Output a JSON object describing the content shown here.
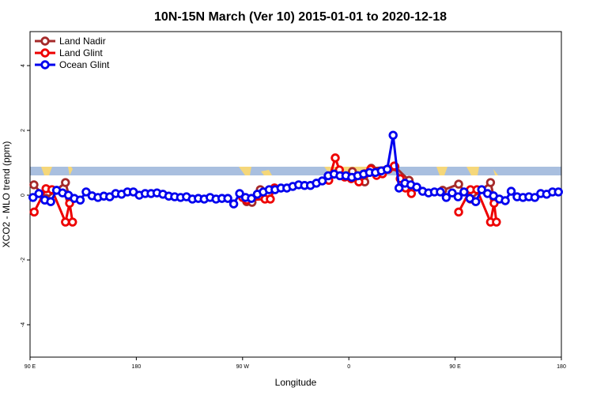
{
  "chart_data": {
    "type": "line",
    "title": "10N-15N March (Ver 10)   2015-01-01 to 2020-12-18",
    "x_label": "Longitude",
    "y_label": "XCO2 - MLO trend (ppm)",
    "xlim": [
      90,
      540
    ],
    "ylim": [
      -5,
      5.05
    ],
    "xticks": [
      {
        "value": 90,
        "label": "90 E"
      },
      {
        "value": 180,
        "label": "180"
      },
      {
        "value": 270,
        "label": "90 W"
      },
      {
        "value": 360,
        "label": "0"
      },
      {
        "value": 450,
        "label": "90 E"
      },
      {
        "value": 540,
        "label": "180"
      }
    ],
    "yticks": [
      -4,
      -2,
      0,
      2,
      4
    ],
    "legend": "top-left",
    "series": [
      {
        "name": "Land Nadir",
        "color": "#a52a2a",
        "x": [
          93.3,
          103.4,
          120,
          123.5,
          null,
          273.5,
          278,
          285,
          297,
          null,
          363,
          373.5,
          379,
          399,
          411,
          null,
          439.5,
          453,
          463,
          480,
          483
        ],
        "values": [
          0.32,
          -0.1,
          0.39,
          -0.1,
          null,
          -0.2,
          -0.22,
          0.17,
          0.22,
          null,
          0.73,
          0.41,
          0.83,
          0.88,
          0.46,
          null,
          0.15,
          0.34,
          -0.12,
          0.39,
          -0.1
        ]
      },
      {
        "name": "Land Glint",
        "color": "#ee0000",
        "x": [
          93.5,
          103.5,
          108.5,
          120,
          123.5,
          126,
          null,
          270,
          273.5,
          289,
          293.5,
          297,
          null,
          343,
          348.5,
          352,
          356.5,
          362,
          368.5,
          373.5,
          378.5,
          383.5,
          388.5,
          393.5,
          398.5,
          403.5,
          408,
          413,
          null,
          453,
          463,
          468.5,
          480,
          483,
          485
        ],
        "values": [
          -0.52,
          0.2,
          0.17,
          -0.83,
          -0.25,
          -0.83,
          null,
          -0.07,
          -0.15,
          -0.12,
          -0.12,
          0.22,
          null,
          0.46,
          1.15,
          0.78,
          0.56,
          0.51,
          0.41,
          0.66,
          0.8,
          0.61,
          0.66,
          0.8,
          0.9,
          0.51,
          0.22,
          0.05,
          null,
          -0.52,
          0.17,
          0.17,
          -0.83,
          -0.25,
          -0.83
        ]
      },
      {
        "name": "Ocean Glint",
        "color": "#0000ee",
        "x": [
          92.5,
          97.5,
          102.5,
          107.5,
          112.5,
          117.5,
          122.5,
          127.5,
          132.5,
          137.5,
          142.5,
          147.5,
          152.5,
          157.5,
          162.5,
          167.5,
          172.5,
          177.5,
          182.5,
          187.5,
          192.5,
          197.5,
          202.5,
          207.5,
          212.5,
          217.5,
          222.5,
          227.5,
          232.5,
          237.5,
          242.5,
          247.5,
          252.5,
          257.5,
          262.5,
          267.5,
          272.5,
          277.5,
          282.5,
          287.5,
          292.5,
          297.5,
          302.5,
          307.5,
          312.5,
          317.5,
          322.5,
          327.5,
          332.5,
          337.5,
          342.5,
          347.5,
          352.5,
          357.5,
          362.5,
          367.5,
          372.5,
          377.5,
          382.5,
          387.5,
          392.5,
          397.5,
          402.5,
          407.5,
          412.5,
          417.5,
          422.5,
          427.5,
          432.5,
          437.5,
          442.5,
          447.5,
          452.5,
          457.5,
          462.5,
          467.5,
          472.5,
          477.5,
          482.5,
          487.5,
          492.5,
          497.5,
          502.5,
          507.5,
          512.5,
          517.5,
          522.5,
          527.5,
          532.5,
          537.5
        ],
        "values": [
          -0.07,
          0.05,
          -0.15,
          -0.2,
          0.15,
          0.07,
          0,
          -0.1,
          -0.15,
          0.1,
          -0.02,
          -0.07,
          -0.03,
          -0.05,
          0.05,
          0.03,
          0.1,
          0.1,
          0,
          0.05,
          0.05,
          0.07,
          0.03,
          -0.03,
          -0.05,
          -0.07,
          -0.05,
          -0.12,
          -0.1,
          -0.12,
          -0.07,
          -0.12,
          -0.1,
          -0.1,
          -0.27,
          0.05,
          -0.07,
          -0.1,
          0.03,
          0.1,
          0.17,
          0.17,
          0.22,
          0.22,
          0.27,
          0.32,
          0.3,
          0.3,
          0.37,
          0.44,
          0.6,
          0.65,
          0.6,
          0.6,
          0.55,
          0.6,
          0.65,
          0.7,
          0.7,
          0.75,
          0.8,
          1.85,
          0.22,
          0.37,
          0.32,
          0.25,
          0.12,
          0.07,
          0.1,
          0.1,
          -0.07,
          0.07,
          -0.05,
          0.1,
          -0.1,
          -0.2,
          0.17,
          0.05,
          -0.02,
          -0.12,
          -0.17,
          0.12,
          -0.05,
          -0.07,
          -0.05,
          -0.07,
          0.05,
          0.03,
          0.1,
          0.1
        ]
      }
    ]
  }
}
